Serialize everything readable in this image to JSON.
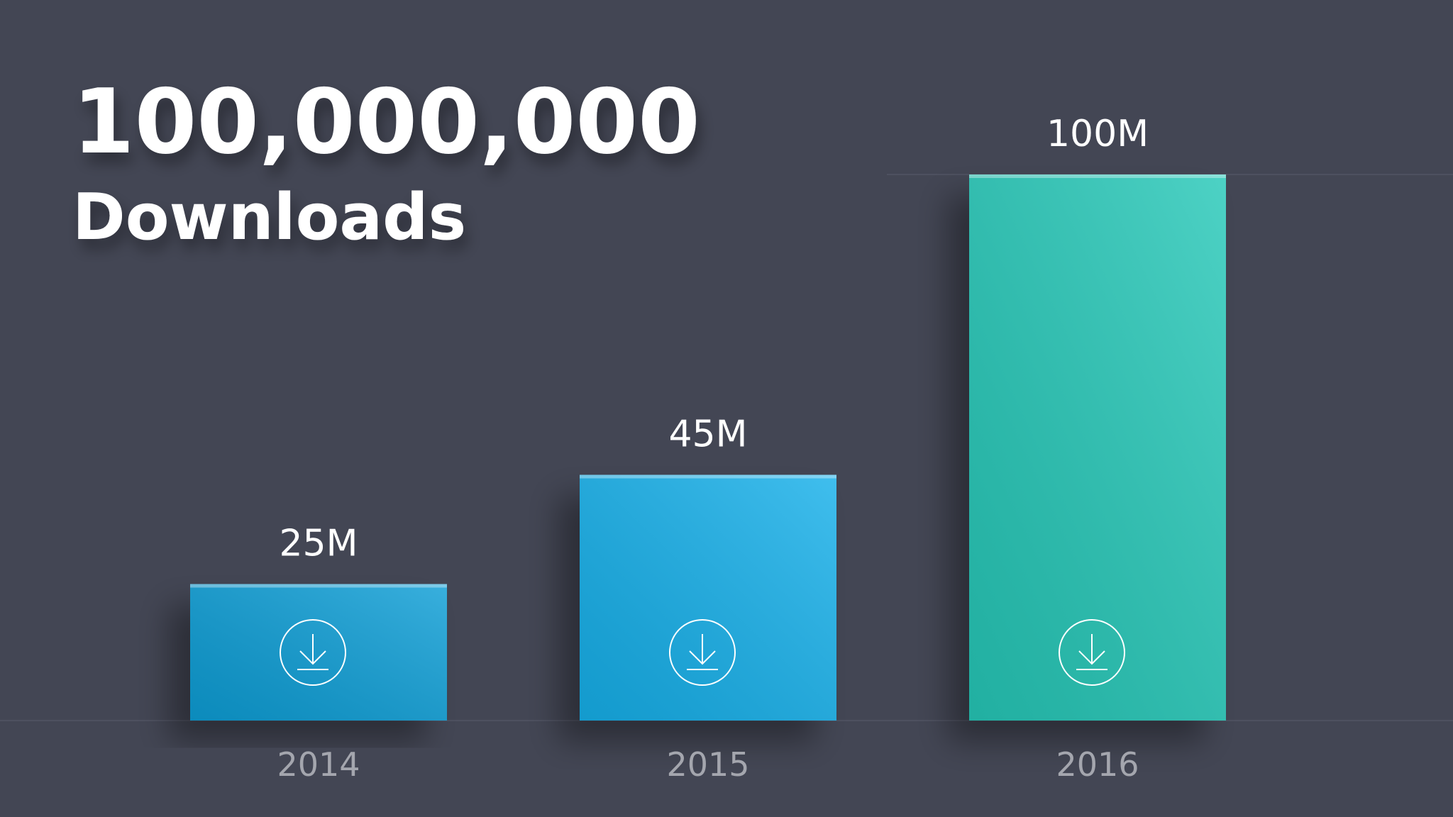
{
  "chart_data": {
    "type": "bar",
    "title": "100,000,000",
    "subtitle": "Downloads",
    "categories": [
      "2014",
      "2015",
      "2016"
    ],
    "values": [
      25,
      45,
      100
    ],
    "value_labels": [
      "25M",
      "45M",
      "100M"
    ],
    "colors": [
      "#0a9ed6",
      "#14b0ea",
      "#26c8b8"
    ]
  }
}
